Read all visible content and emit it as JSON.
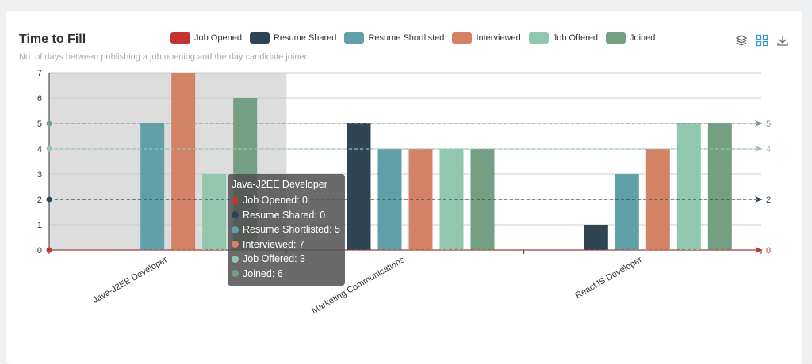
{
  "header": {
    "title": "Time to Fill",
    "subtitle": "No. of days between publishing a job opening and the day candidate joined"
  },
  "toolbox": {
    "icons": [
      "layers-icon",
      "grid-icon",
      "download-icon"
    ]
  },
  "colors": {
    "Job Opened": "#c23531",
    "Resume Shared": "#2f4554",
    "Resume Shortlisted": "#61a0a8",
    "Interviewed": "#d48265",
    "Job Offered": "#91c7ae",
    "Joined": "#749f83",
    "highlight": "#dddddd",
    "grid": "#cccccc",
    "axis": "#333333"
  },
  "chart_data": {
    "type": "bar",
    "categories": [
      "Java-J2EE Developer",
      "Marketing Communications",
      "ReactJS Developer"
    ],
    "series": [
      {
        "name": "Job Opened",
        "values": [
          0,
          0,
          0
        ]
      },
      {
        "name": "Resume Shared",
        "values": [
          0,
          5,
          1
        ]
      },
      {
        "name": "Resume Shortlisted",
        "values": [
          5,
          4,
          3
        ]
      },
      {
        "name": "Interviewed",
        "values": [
          7,
          4,
          4
        ]
      },
      {
        "name": "Job Offered",
        "values": [
          3,
          4,
          5
        ]
      },
      {
        "name": "Joined",
        "values": [
          6,
          4,
          5
        ]
      }
    ],
    "ylim": [
      0,
      7
    ],
    "yticks": [
      0,
      1,
      2,
      3,
      4,
      5,
      6,
      7
    ],
    "grid": true,
    "legend_position": "top",
    "mark_lines": [
      {
        "series": "Job Opened",
        "value": 0,
        "label": "0"
      },
      {
        "series": "Resume Shared",
        "value": 2,
        "label": "2"
      },
      {
        "series": "Job Offered",
        "value": 4,
        "label": "4"
      },
      {
        "series": "Joined",
        "value": 5,
        "label": "5"
      }
    ],
    "highlighted_category": "Java-J2EE Developer"
  },
  "tooltip": {
    "title": "Java-J2EE Developer",
    "rows": [
      {
        "series": "Job Opened",
        "text": "Job Opened: 0"
      },
      {
        "series": "Resume Shared",
        "text": "Resume Shared: 0"
      },
      {
        "series": "Resume Shortlisted",
        "text": "Resume Shortlisted: 5"
      },
      {
        "series": "Interviewed",
        "text": "Interviewed: 7"
      },
      {
        "series": "Job Offered",
        "text": "Job Offered: 3"
      },
      {
        "series": "Joined",
        "text": "Joined: 6"
      }
    ]
  }
}
